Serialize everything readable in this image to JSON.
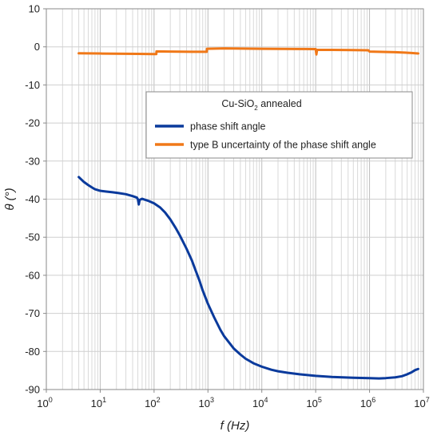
{
  "chart_data": {
    "type": "line",
    "title": "",
    "xlabel": "f (Hz)",
    "ylabel": "θ (°)",
    "x_scale": "log",
    "xlim": [
      1,
      10000000
    ],
    "ylim": [
      -90,
      10
    ],
    "grid": true,
    "x_ticks": [
      {
        "value": 1,
        "base": "10",
        "exp": "0"
      },
      {
        "value": 10,
        "base": "10",
        "exp": "1"
      },
      {
        "value": 100,
        "base": "10",
        "exp": "2"
      },
      {
        "value": 1000,
        "base": "10",
        "exp": "3"
      },
      {
        "value": 10000,
        "base": "10",
        "exp": "4"
      },
      {
        "value": 100000,
        "base": "10",
        "exp": "5"
      },
      {
        "value": 1000000,
        "base": "10",
        "exp": "6"
      },
      {
        "value": 10000000,
        "base": "10",
        "exp": "7"
      }
    ],
    "y_ticks": [
      {
        "value": 10,
        "label": "10"
      },
      {
        "value": 0,
        "label": "0"
      },
      {
        "value": -10,
        "label": "-10"
      },
      {
        "value": -20,
        "label": "-20"
      },
      {
        "value": -30,
        "label": "-30"
      },
      {
        "value": -40,
        "label": "-40"
      },
      {
        "value": -50,
        "label": "-50"
      },
      {
        "value": -60,
        "label": "-60"
      },
      {
        "value": -70,
        "label": "-70"
      },
      {
        "value": -80,
        "label": "-80"
      },
      {
        "value": -90,
        "label": "-90"
      }
    ],
    "legend": {
      "placement": "upper-right",
      "title_parts": [
        "Cu-SiO",
        "2",
        " annealed"
      ]
    },
    "series": [
      {
        "name": "phase shift angle",
        "color": "#0a3a9c",
        "points": [
          [
            4,
            -34.2
          ],
          [
            5,
            -35.5
          ],
          [
            6,
            -36.3
          ],
          [
            7,
            -36.9
          ],
          [
            8,
            -37.4
          ],
          [
            10,
            -37.8
          ],
          [
            13,
            -38.0
          ],
          [
            17,
            -38.2
          ],
          [
            22,
            -38.4
          ],
          [
            30,
            -38.7
          ],
          [
            40,
            -39.2
          ],
          [
            48,
            -39.6
          ],
          [
            50,
            -40.0
          ],
          [
            52,
            -41.4
          ],
          [
            54,
            -40.2
          ],
          [
            60,
            -39.9
          ],
          [
            80,
            -40.5
          ],
          [
            100,
            -41.1
          ],
          [
            130,
            -42.2
          ],
          [
            160,
            -43.5
          ],
          [
            200,
            -45.3
          ],
          [
            250,
            -47.5
          ],
          [
            300,
            -49.5
          ],
          [
            400,
            -53.0
          ],
          [
            500,
            -56.0
          ],
          [
            600,
            -59.0
          ],
          [
            700,
            -61.5
          ],
          [
            800,
            -64.0
          ],
          [
            1000,
            -67.5
          ],
          [
            1300,
            -71.0
          ],
          [
            1700,
            -74.3
          ],
          [
            2000,
            -76.0
          ],
          [
            3000,
            -79.2
          ],
          [
            4000,
            -80.8
          ],
          [
            5000,
            -81.9
          ],
          [
            7000,
            -83.1
          ],
          [
            10000,
            -84.0
          ],
          [
            15000,
            -84.8
          ],
          [
            20000,
            -85.2
          ],
          [
            30000,
            -85.6
          ],
          [
            50000,
            -86.0
          ],
          [
            100000,
            -86.4
          ],
          [
            200000,
            -86.7
          ],
          [
            500000,
            -86.9
          ],
          [
            1000000,
            -87.0
          ],
          [
            1500000,
            -87.1
          ],
          [
            2000000,
            -87.0
          ],
          [
            3000000,
            -86.8
          ],
          [
            4000000,
            -86.5
          ],
          [
            5000000,
            -86.0
          ],
          [
            6000000,
            -85.5
          ],
          [
            7000000,
            -84.9
          ],
          [
            8000000,
            -84.6
          ]
        ]
      },
      {
        "name": "type B uncertainty of the phase shift angle",
        "color": "#f07818",
        "points": [
          [
            4,
            -1.7
          ],
          [
            10,
            -1.75
          ],
          [
            50,
            -1.85
          ],
          [
            100,
            -1.9
          ],
          [
            110,
            -1.9
          ],
          [
            111,
            -1.2
          ],
          [
            200,
            -1.25
          ],
          [
            500,
            -1.3
          ],
          [
            950,
            -1.3
          ],
          [
            960,
            -0.5
          ],
          [
            2000,
            -0.4
          ],
          [
            10000,
            -0.5
          ],
          [
            50000,
            -0.55
          ],
          [
            95000,
            -0.6
          ],
          [
            100000,
            -0.6
          ],
          [
            103000,
            -2.0
          ],
          [
            106000,
            -0.8
          ],
          [
            200000,
            -0.8
          ],
          [
            500000,
            -0.85
          ],
          [
            950000,
            -0.9
          ],
          [
            1000000,
            -1.25
          ],
          [
            3000000,
            -1.4
          ],
          [
            6000000,
            -1.6
          ],
          [
            8000000,
            -1.75
          ]
        ]
      }
    ]
  }
}
